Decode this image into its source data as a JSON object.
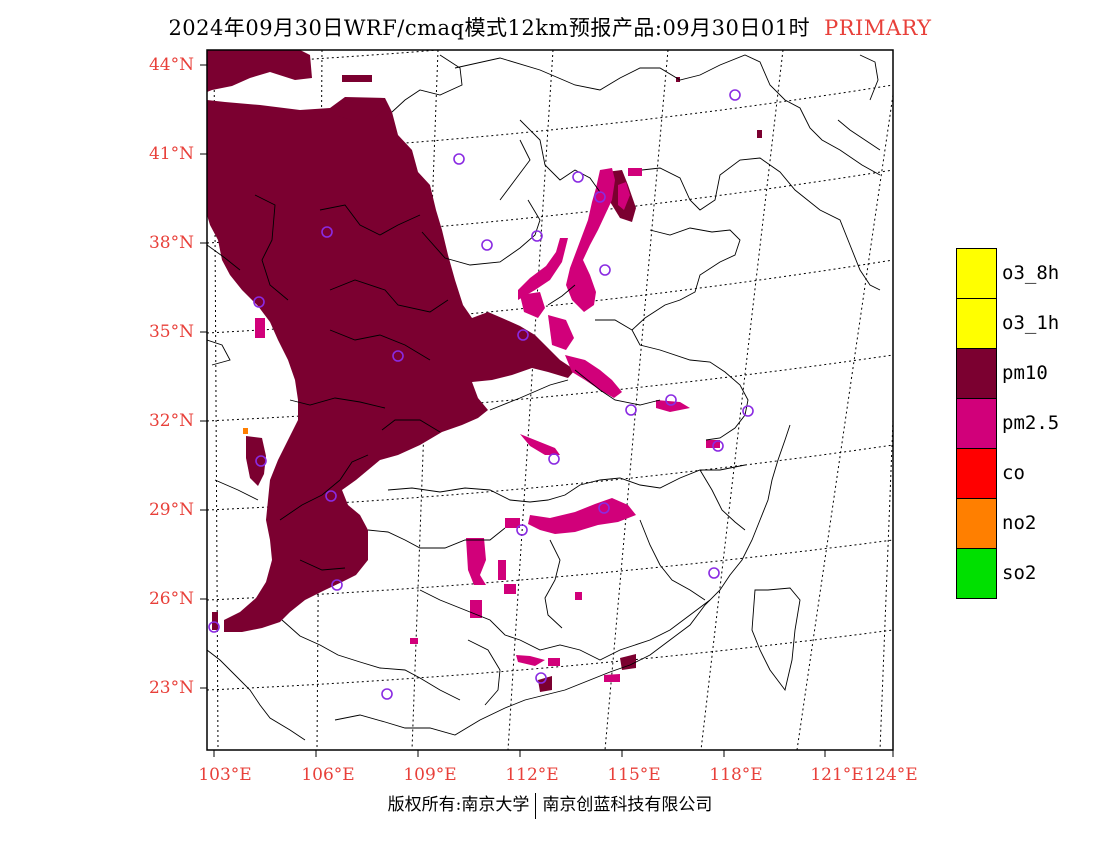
{
  "title": {
    "text": "2024年09月30日WRF/cmaq模式12km预报产品:09月30日01时",
    "tag": "PRIMARY"
  },
  "axes": {
    "lat_labels": [
      "44°N",
      "41°N",
      "38°N",
      "35°N",
      "32°N",
      "29°N",
      "26°N",
      "23°N"
    ],
    "lon_labels": [
      "103°E",
      "106°E",
      "109°E",
      "112°E",
      "115°E",
      "118°E",
      "121°E",
      "124°E"
    ]
  },
  "legend": [
    {
      "label": "o3_8h",
      "color": "#ffff00"
    },
    {
      "label": "o3_1h",
      "color": "#ffff00"
    },
    {
      "label": "pm10",
      "color": "#7b0030"
    },
    {
      "label": "pm2.5",
      "color": "#d1007a"
    },
    {
      "label": "co",
      "color": "#ff0000"
    },
    {
      "label": "no2",
      "color": "#ff7f00"
    },
    {
      "label": "so2",
      "color": "#00e000"
    }
  ],
  "colors": {
    "pm10": "#7b0030",
    "pm25": "#d1007a",
    "no2": "#ff7f00",
    "station": "#8a2be2",
    "label_red": "#e8403a"
  },
  "credit": {
    "left": "版权所有:南京大学",
    "right": "南京创蓝科技有限公司"
  }
}
